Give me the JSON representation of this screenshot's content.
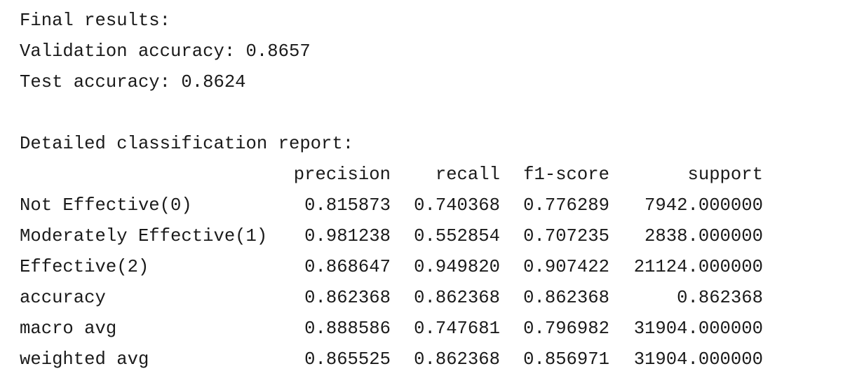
{
  "summary": {
    "title": "Final results:",
    "validation": "Validation accuracy: 0.8657",
    "test": "Test accuracy: 0.8624"
  },
  "report": {
    "title": "Detailed classification report:",
    "columns": [
      "precision",
      "recall",
      "f1-score",
      "support"
    ],
    "rows": [
      [
        "Not Effective(0)",
        "0.815873",
        "0.740368",
        "0.776289",
        "7942.000000"
      ],
      [
        "Moderately Effective(1)",
        "0.981238",
        "0.552854",
        "0.707235",
        "2838.000000"
      ],
      [
        "Effective(2)",
        "0.868647",
        "0.949820",
        "0.907422",
        "21124.000000"
      ],
      [
        "accuracy",
        "0.862368",
        "0.862368",
        "0.862368",
        "0.862368"
      ],
      [
        "macro avg",
        "0.888586",
        "0.747681",
        "0.796982",
        "31904.000000"
      ],
      [
        "weighted avg",
        "0.865525",
        "0.862368",
        "0.856971",
        "31904.000000"
      ]
    ]
  }
}
